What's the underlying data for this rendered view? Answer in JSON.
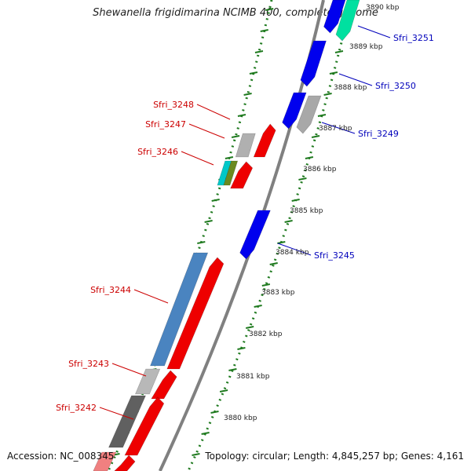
{
  "title": "Shewanella frigidimarina NCIMB 400, complete genome",
  "accession": "Accession: NC_008345",
  "topology": "Topology: circular; Length: 4,845,257 bp; Genes: 4,161",
  "colors": {
    "forward_label": "#cc0000",
    "reverse_label": "#0000bb",
    "backbone": "#808080",
    "ticks": "#1f7a1f"
  },
  "kbp_labels": [
    "3890 kbp",
    "3889 kbp",
    "3888 kbp",
    "3887 kbp",
    "3886 kbp",
    "3885 kbp",
    "3884 kbp",
    "3883 kbp",
    "3882 kbp",
    "3881 kbp",
    "3880 kbp"
  ],
  "genes_outer": [
    {
      "label": "Sfri_3251",
      "strand": "reverse",
      "color": "#00e0a0"
    },
    {
      "label": "Sfri_3250",
      "strand": "reverse",
      "color": "#0000ee"
    },
    {
      "label": "Sfri_3249",
      "strand": "reverse",
      "color": "#a8a8a8"
    },
    {
      "label": "Sfri_3245",
      "strand": "reverse",
      "color": "#0000ee"
    }
  ],
  "genes_inner": [
    {
      "label": "Sfri_3248",
      "strand": "forward",
      "color": "#ee0000"
    },
    {
      "label": "Sfri_3247",
      "strand": "forward",
      "color": "#b0b0b0"
    },
    {
      "label": "Sfri_3246",
      "strand": "forward",
      "color": "#00c8c8"
    },
    {
      "label": "Sfri_3244",
      "strand": "forward",
      "color": "#4a84c0"
    },
    {
      "label": "Sfri_3243",
      "strand": "forward",
      "color": "#b8b8b8"
    },
    {
      "label": "Sfri_3242",
      "strand": "forward",
      "color": "#606060"
    }
  ]
}
